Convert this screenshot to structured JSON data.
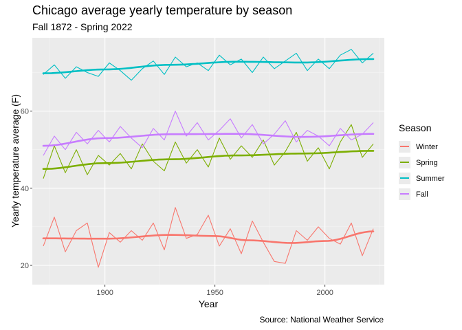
{
  "chart_data": {
    "type": "line",
    "title": "Chicago average yearly temperature by season",
    "subtitle": "Fall 1872 - Spring 2022",
    "xlabel": "Year",
    "ylabel": "Yearly temperature average (F)",
    "caption": "Source: National Weather Service",
    "xlim": [
      1867,
      2027
    ],
    "ylim": [
      15,
      79
    ],
    "x_ticks": [
      1900,
      1950,
      2000
    ],
    "y_ticks": [
      20,
      40,
      60
    ],
    "grid": true,
    "legend_position": "right",
    "legend_title": "Season",
    "background": "#ebebeb",
    "series": [
      {
        "name": "Winter",
        "color": "#f8766d",
        "trend": [
          [
            1872,
            27.0
          ],
          [
            1900,
            26.9
          ],
          [
            1930,
            27.9
          ],
          [
            1950,
            27.6
          ],
          [
            1965,
            26.5
          ],
          [
            1985,
            25.8
          ],
          [
            2000,
            26.3
          ],
          [
            2022,
            28.8
          ]
        ],
        "x": [
          1872,
          1877,
          1882,
          1887,
          1892,
          1897,
          1902,
          1907,
          1912,
          1917,
          1922,
          1927,
          1932,
          1937,
          1942,
          1947,
          1952,
          1957,
          1962,
          1967,
          1972,
          1977,
          1982,
          1987,
          1992,
          1997,
          2002,
          2007,
          2012,
          2017,
          2022
        ],
        "values": [
          25.0,
          32.5,
          23.5,
          29.0,
          31.0,
          19.5,
          28.5,
          26.0,
          29.0,
          26.5,
          31.0,
          24.0,
          35.0,
          27.0,
          28.0,
          33.0,
          25.0,
          29.5,
          23.0,
          31.5,
          26.0,
          21.0,
          20.5,
          29.0,
          26.5,
          30.0,
          27.0,
          25.5,
          31.0,
          22.5,
          29.5
        ]
      },
      {
        "name": "Spring",
        "color": "#7cae00",
        "trend": [
          [
            1872,
            45.0
          ],
          [
            1900,
            46.5
          ],
          [
            1930,
            47.5
          ],
          [
            1960,
            48.5
          ],
          [
            1990,
            49.0
          ],
          [
            2022,
            49.7
          ]
        ],
        "x": [
          1872,
          1877,
          1882,
          1887,
          1892,
          1897,
          1902,
          1907,
          1912,
          1917,
          1922,
          1927,
          1932,
          1937,
          1942,
          1947,
          1952,
          1957,
          1962,
          1967,
          1972,
          1977,
          1982,
          1987,
          1992,
          1997,
          2002,
          2007,
          2012,
          2017,
          2022
        ],
        "values": [
          42.5,
          51.0,
          44.0,
          50.0,
          43.5,
          48.5,
          46.0,
          49.0,
          45.0,
          51.5,
          47.0,
          44.5,
          52.0,
          46.5,
          50.0,
          45.5,
          53.0,
          47.5,
          51.0,
          48.0,
          52.5,
          46.0,
          49.5,
          54.5,
          47.0,
          50.5,
          45.0,
          52.0,
          56.5,
          48.0,
          51.5
        ]
      },
      {
        "name": "Summer",
        "color": "#00bfc4",
        "trend": [
          [
            1872,
            69.8
          ],
          [
            1900,
            70.8
          ],
          [
            1930,
            72.0
          ],
          [
            1960,
            72.8
          ],
          [
            1990,
            72.6
          ],
          [
            2022,
            73.5
          ]
        ],
        "x": [
          1872,
          1877,
          1882,
          1887,
          1892,
          1897,
          1902,
          1907,
          1912,
          1917,
          1922,
          1927,
          1932,
          1937,
          1942,
          1947,
          1952,
          1957,
          1962,
          1967,
          1972,
          1977,
          1982,
          1987,
          1992,
          1997,
          2002,
          2007,
          2012,
          2017,
          2022
        ],
        "values": [
          69.5,
          72.0,
          68.5,
          71.5,
          70.0,
          69.0,
          72.5,
          70.5,
          68.0,
          71.0,
          73.0,
          69.5,
          74.0,
          71.5,
          72.5,
          70.5,
          74.5,
          72.0,
          73.5,
          70.0,
          74.0,
          71.0,
          73.0,
          75.0,
          70.5,
          73.5,
          71.0,
          74.5,
          76.0,
          72.5,
          75.0
        ]
      },
      {
        "name": "Fall",
        "color": "#c77cff",
        "trend": [
          [
            1872,
            51.0
          ],
          [
            1900,
            53.0
          ],
          [
            1930,
            54.0
          ],
          [
            1960,
            54.1
          ],
          [
            1990,
            53.3
          ],
          [
            2022,
            54.1
          ]
        ],
        "x": [
          1872,
          1877,
          1882,
          1887,
          1892,
          1897,
          1902,
          1907,
          1912,
          1917,
          1922,
          1927,
          1932,
          1937,
          1942,
          1947,
          1952,
          1957,
          1962,
          1967,
          1972,
          1977,
          1982,
          1987,
          1992,
          1997,
          2002,
          2007,
          2012,
          2017,
          2022
        ],
        "values": [
          48.5,
          53.5,
          50.0,
          54.5,
          51.5,
          55.0,
          52.0,
          56.0,
          53.0,
          50.5,
          55.5,
          52.5,
          60.0,
          53.5,
          57.0,
          52.5,
          55.0,
          58.0,
          53.0,
          56.5,
          51.5,
          54.0,
          57.5,
          52.0,
          55.0,
          53.5,
          51.0,
          55.5,
          52.5,
          54.0,
          57.0
        ]
      }
    ]
  }
}
